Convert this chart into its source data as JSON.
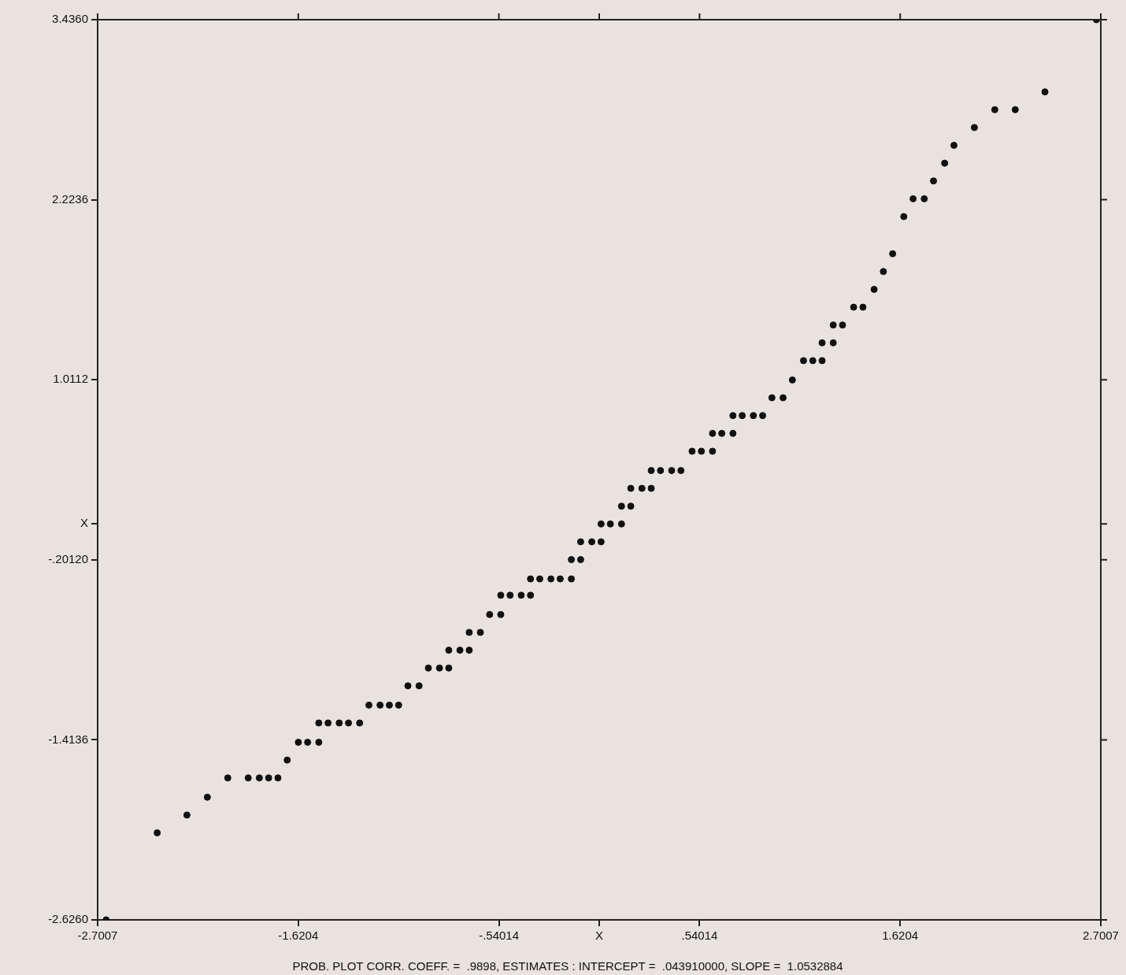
{
  "chart_data": {
    "type": "scatter",
    "marker": "circle",
    "grid": false,
    "legend": false,
    "annotations": [
      "PROB. PLOT CORR. COEFF. =  .9898, ESTIMATES : INTERCEPT =  .043910000, SLOPE =  1.0532884"
    ],
    "xlim": [
      -2.7007,
      2.7007
    ],
    "xticks": [
      -2.7007,
      -1.6204,
      {
        "value": -0.54014,
        "label": "-.54014"
      },
      {
        "value": 0,
        "label": "X"
      },
      {
        "value": 0.54014,
        "label": ".54014"
      },
      1.6204,
      2.7007
    ],
    "ylim": [
      -2.626,
      3.436
    ],
    "yticks": [
      {
        "value": -2.626,
        "label": "-2.6260"
      },
      -1.4136,
      {
        "value": -0.2012,
        "label": "-.20120"
      },
      {
        "value": 0.04,
        "label": "X"
      },
      1.0112,
      2.2236,
      {
        "value": 3.436,
        "label": "3.4360"
      }
    ],
    "series": [
      {
        "color": "#111111",
        "x": [
          -2.655,
          -2.38,
          -2.22,
          -2.11,
          -2.0,
          -1.89,
          -1.83,
          -1.78,
          -1.73,
          -1.68,
          -1.62,
          -1.57,
          -1.51,
          -1.51,
          -1.46,
          -1.4,
          -1.35,
          -1.29,
          -1.24,
          -1.18,
          -1.13,
          -1.08,
          -1.03,
          -0.97,
          -0.92,
          -0.86,
          -0.81,
          -0.81,
          -0.75,
          -0.7,
          -0.7,
          -0.64,
          -0.59,
          -0.53,
          -0.53,
          -0.48,
          -0.42,
          -0.37,
          -0.37,
          -0.32,
          -0.26,
          -0.21,
          -0.15,
          -0.15,
          -0.1,
          -0.1,
          -0.04,
          0.01,
          0.01,
          0.06,
          0.12,
          0.12,
          0.17,
          0.17,
          0.23,
          0.28,
          0.28,
          0.33,
          0.39,
          0.44,
          0.5,
          0.55,
          0.61,
          0.61,
          0.66,
          0.72,
          0.72,
          0.77,
          0.83,
          0.88,
          0.93,
          0.99,
          1.04,
          1.1,
          1.15,
          1.2,
          1.2,
          1.26,
          1.26,
          1.31,
          1.37,
          1.42,
          1.48,
          1.53,
          1.58,
          1.64,
          1.69,
          1.75,
          1.8,
          1.86,
          1.91,
          2.02,
          2.13,
          2.24,
          2.4,
          2.677
        ],
        "values": [
          -2.626,
          -2.04,
          -1.92,
          -1.8,
          -1.67,
          -1.67,
          -1.67,
          -1.67,
          -1.67,
          -1.55,
          -1.43,
          -1.43,
          -1.43,
          -1.3,
          -1.3,
          -1.3,
          -1.3,
          -1.3,
          -1.18,
          -1.18,
          -1.18,
          -1.18,
          -1.05,
          -1.05,
          -0.93,
          -0.93,
          -0.93,
          -0.81,
          -0.81,
          -0.81,
          -0.69,
          -0.69,
          -0.57,
          -0.57,
          -0.44,
          -0.44,
          -0.44,
          -0.44,
          -0.33,
          -0.33,
          -0.33,
          -0.33,
          -0.33,
          -0.2,
          -0.2,
          -0.08,
          -0.08,
          -0.08,
          0.04,
          0.04,
          0.04,
          0.16,
          0.16,
          0.28,
          0.28,
          0.28,
          0.4,
          0.4,
          0.4,
          0.4,
          0.53,
          0.53,
          0.53,
          0.65,
          0.65,
          0.65,
          0.77,
          0.77,
          0.77,
          0.77,
          0.89,
          0.89,
          1.01,
          1.14,
          1.14,
          1.14,
          1.26,
          1.26,
          1.38,
          1.38,
          1.5,
          1.5,
          1.62,
          1.74,
          1.86,
          2.11,
          2.23,
          2.23,
          2.35,
          2.47,
          2.59,
          2.71,
          2.83,
          2.83,
          2.95,
          3.436
        ]
      }
    ]
  }
}
